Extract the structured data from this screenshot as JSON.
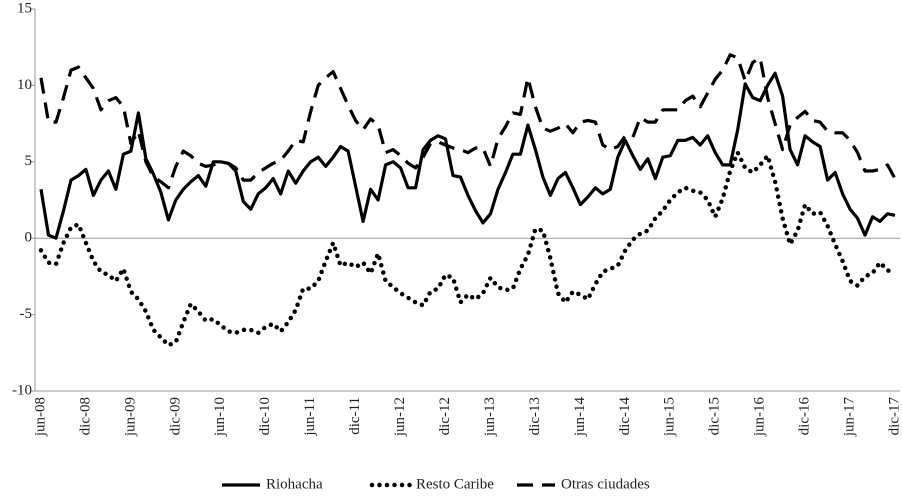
{
  "chart_data": {
    "type": "line",
    "categories": [
      "jun-08",
      null,
      null,
      null,
      null,
      null,
      "dic-08",
      null,
      null,
      null,
      null,
      null,
      "jun-09",
      null,
      null,
      null,
      null,
      null,
      "dic-09",
      null,
      null,
      null,
      null,
      null,
      "jun-10",
      null,
      null,
      null,
      null,
      null,
      "dic-10",
      null,
      null,
      null,
      null,
      null,
      "jun-11",
      null,
      null,
      null,
      null,
      null,
      "dic-11",
      null,
      null,
      null,
      null,
      null,
      "jun-12",
      null,
      null,
      null,
      null,
      null,
      "dic-12",
      null,
      null,
      null,
      null,
      null,
      "jun-13",
      null,
      null,
      null,
      null,
      null,
      "dic-13",
      null,
      null,
      null,
      null,
      null,
      "jun-14",
      null,
      null,
      null,
      null,
      null,
      "dic-14",
      null,
      null,
      null,
      null,
      null,
      "jun-15",
      null,
      null,
      null,
      null,
      null,
      "dic-15",
      null,
      null,
      null,
      null,
      null,
      "jun-16",
      null,
      null,
      null,
      null,
      null,
      "dic-16",
      null,
      null,
      null,
      null,
      null,
      "jun-17",
      null,
      null,
      null,
      null,
      null,
      "dic-17"
    ],
    "series": [
      {
        "name": "Riohacha",
        "color": "#000000",
        "dash": "solid",
        "values": [
          3.2,
          0.2,
          0,
          1.8,
          3.8,
          4.1,
          4.5,
          2.8,
          3.8,
          4.4,
          3.2,
          5.5,
          5.7,
          8.2,
          5.2,
          4.2,
          3,
          1.2,
          2.5,
          3.2,
          3.7,
          4.1,
          3.4,
          5,
          5,
          4.9,
          4.4,
          2.4,
          1.9,
          2.9,
          3.3,
          3.9,
          2.9,
          4.4,
          3.6,
          4.4,
          5,
          5.3,
          4.7,
          5.3,
          6,
          5.7,
          3.4,
          1.1,
          3.2,
          2.5,
          4.8,
          5,
          4.6,
          3.3,
          3.3,
          5.8,
          6.4,
          6.7,
          6.5,
          4.1,
          4,
          2.8,
          1.8,
          1,
          1.6,
          3.2,
          4.3,
          5.5,
          5.5,
          7.4,
          5.8,
          4,
          2.8,
          3.9,
          4.3,
          3.3,
          2.2,
          2.7,
          3.3,
          2.9,
          3.2,
          5.3,
          6.4,
          5.4,
          4.5,
          5.2,
          3.9,
          5.3,
          5.4,
          6.4,
          6.4,
          6.6,
          6.1,
          6.7,
          5.6,
          4.8,
          4.8,
          7.1,
          10.1,
          9.2,
          9,
          10,
          10.8,
          9.3,
          5.8,
          4.8,
          6.7,
          6.3,
          6,
          3.8,
          4.3,
          2.9,
          1.9,
          1.3,
          0.2,
          1.4,
          1.1,
          1.6,
          1.5
        ]
      },
      {
        "name": "Resto Caribe",
        "color": "#000000",
        "dash": "dotted",
        "values": [
          -0.8,
          -1.6,
          -1.7,
          -0.3,
          0.7,
          0.9,
          -0.3,
          -1.5,
          -2.2,
          -2.4,
          -2.8,
          -2,
          -3.5,
          -4,
          -4.8,
          -6,
          -6.5,
          -7,
          -6.8,
          -5.5,
          -4.3,
          -4.8,
          -5.4,
          -5.3,
          -5.7,
          -6.1,
          -6.2,
          -6,
          -6,
          -6.2,
          -5.8,
          -5.6,
          -6.1,
          -5.5,
          -4.7,
          -3.3,
          -3.3,
          -2.8,
          -1.5,
          -0.3,
          -1.8,
          -1.6,
          -1.9,
          -1.6,
          -2.3,
          -1,
          -2.8,
          -3.2,
          -3.6,
          -3.9,
          -4.2,
          -4.4,
          -3.5,
          -3.3,
          -2.4,
          -2.6,
          -4.2,
          -3.7,
          -4,
          -3.6,
          -2.6,
          -3.2,
          -3.4,
          -3.3,
          -2,
          -1.1,
          0.6,
          0.5,
          -1.3,
          -3.6,
          -4.2,
          -3.5,
          -3.7,
          -4,
          -3,
          -2.2,
          -2,
          -1.8,
          -0.8,
          -0.1,
          0.3,
          0.5,
          1.3,
          1.8,
          2.5,
          3,
          3.3,
          3.1,
          3,
          2.5,
          1.4,
          2.6,
          4.4,
          5.6,
          4.6,
          4.3,
          4.8,
          5.4,
          3.7,
          1.3,
          -0.4,
          0.5,
          2.2,
          1.6,
          1.7,
          0.8,
          -0.4,
          -1.5,
          -2.8,
          -3.1,
          -2.5,
          -2.3,
          -1.6,
          -2.1,
          -2.3
        ]
      },
      {
        "name": "Otras ciudades",
        "color": "#000000",
        "dash": "dashed",
        "values": [
          10.5,
          7.6,
          7.6,
          9.2,
          11,
          11.2,
          10.5,
          9.8,
          8.4,
          9,
          9.2,
          8.6,
          6.2,
          7,
          5,
          4,
          3.7,
          3.3,
          4.7,
          5.7,
          5.4,
          4.9,
          4.7,
          4.8,
          5,
          4.9,
          4.6,
          3.8,
          3.8,
          4.3,
          4.6,
          4.9,
          5.1,
          5.7,
          6.4,
          6.3,
          8.3,
          10,
          10.5,
          10.9,
          9.8,
          8.7,
          7.7,
          7.1,
          7.8,
          7.4,
          5.6,
          5.8,
          5.4,
          4.9,
          4.6,
          5.3,
          6.2,
          6.3,
          6.1,
          5.9,
          5.8,
          5.6,
          5.9,
          5.9,
          4.7,
          6.5,
          7.3,
          8.2,
          8.1,
          10.5,
          8.6,
          7.2,
          7,
          7.2,
          7.5,
          6.9,
          7.6,
          7.7,
          7.6,
          6.1,
          5.8,
          6,
          6.7,
          6.6,
          7.9,
          7.6,
          7.6,
          8.4,
          8.4,
          8.4,
          9,
          9.3,
          8.6,
          9.5,
          10.4,
          11,
          12,
          11.8,
          10.3,
          11.5,
          11.8,
          9.2,
          7.5,
          5.8,
          7.4,
          7.9,
          8.3,
          7.7,
          7.6,
          7,
          6.9,
          6.9,
          6.4,
          5.6,
          4.4,
          4.4,
          4.5,
          4.8,
          3.9
        ]
      }
    ],
    "ylim": [
      -10,
      15
    ],
    "yticks": [
      -10,
      -5,
      0,
      5,
      10,
      15
    ],
    "zero_line": true
  }
}
